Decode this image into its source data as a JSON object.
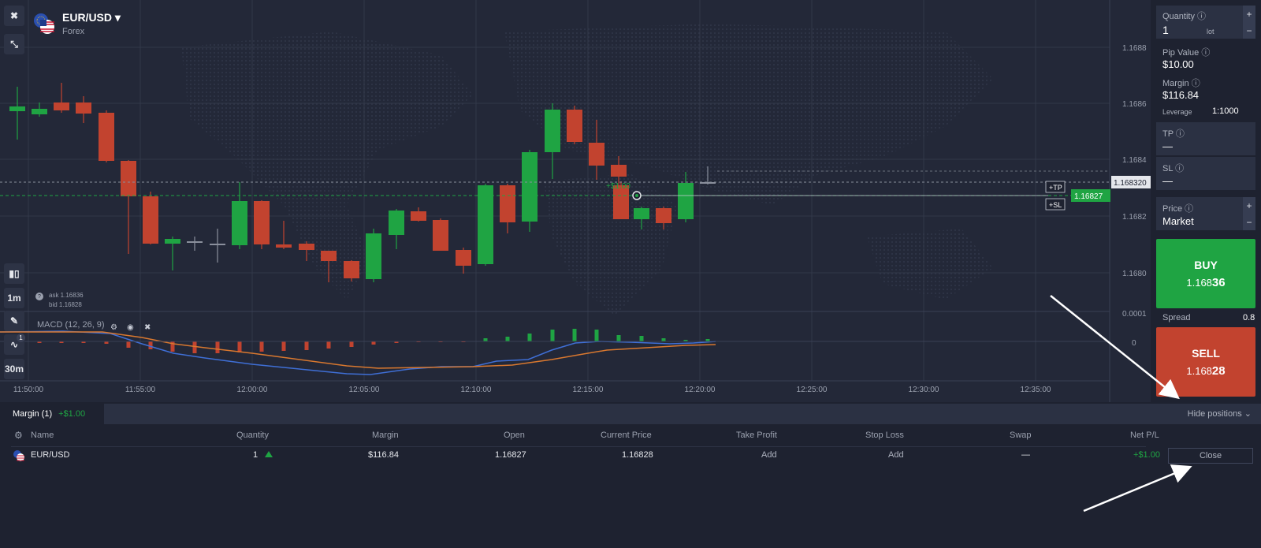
{
  "asset": {
    "name": "EUR/USD",
    "category": "Forex",
    "ask": "ask 1.16836",
    "bid": "bid 1.16828"
  },
  "left_toolbar": {
    "timeframe": "1m",
    "interval": "30m",
    "indicator_count": "1"
  },
  "chart": {
    "price_ticks": [
      "1.1688",
      "1.1686",
      "1.1684",
      "1.1682",
      "1.1680"
    ],
    "time_ticks": [
      "11:50:00",
      "11:55:00",
      "12:00:00",
      "12:05:00",
      "12:10:00",
      "12:15:00",
      "12:20:00",
      "12:25:00",
      "12:30:00",
      "12:35:00"
    ],
    "current_price_label": "1.168320",
    "open_price_label": "1.16827",
    "profit_label": "+$1.00",
    "tp_tag": "+TP",
    "sl_tag": "+SL",
    "macd_label": "MACD (12, 26, 9)",
    "macd_ticks": [
      "0.0001",
      "0"
    ],
    "colors": {
      "up": "#1fa443",
      "down": "#c2432f",
      "macd": "#3f6fd6",
      "signal": "#d9782f"
    }
  },
  "trade_panel": {
    "quantity_label": "Quantity",
    "quantity_value": "1",
    "quantity_unit": "lot",
    "pip_value_label": "Pip Value",
    "pip_value": "$10.00",
    "margin_label": "Margin",
    "margin_value": "$116.84",
    "leverage_label": "Leverage",
    "leverage_value": "1:1000",
    "tp_label": "TP",
    "tp_value": "—",
    "sl_label": "SL",
    "sl_value": "—",
    "price_label": "Price",
    "price_value": "Market",
    "buy_label": "BUY",
    "buy_price_main": "1.168",
    "buy_price_big": "36",
    "spread_label": "Spread",
    "spread_value": "0.8",
    "sell_label": "SELL",
    "sell_price_main": "1.168",
    "sell_price_big": "28"
  },
  "positions": {
    "tab_label": "Margin (1)",
    "tab_pnl": "+$1.00",
    "hide_label": "Hide positions",
    "columns": [
      "Name",
      "Quantity",
      "Margin",
      "Open",
      "Current Price",
      "Take Profit",
      "Stop Loss",
      "Swap",
      "Net P/L"
    ],
    "row": {
      "name": "EUR/USD",
      "quantity": "1",
      "margin": "$116.84",
      "open": "1.16827",
      "current_price": "1.16828",
      "take_profit": "Add",
      "stop_loss": "Add",
      "swap": "—",
      "net_pl": "+$1.00",
      "close_label": "Close"
    }
  }
}
